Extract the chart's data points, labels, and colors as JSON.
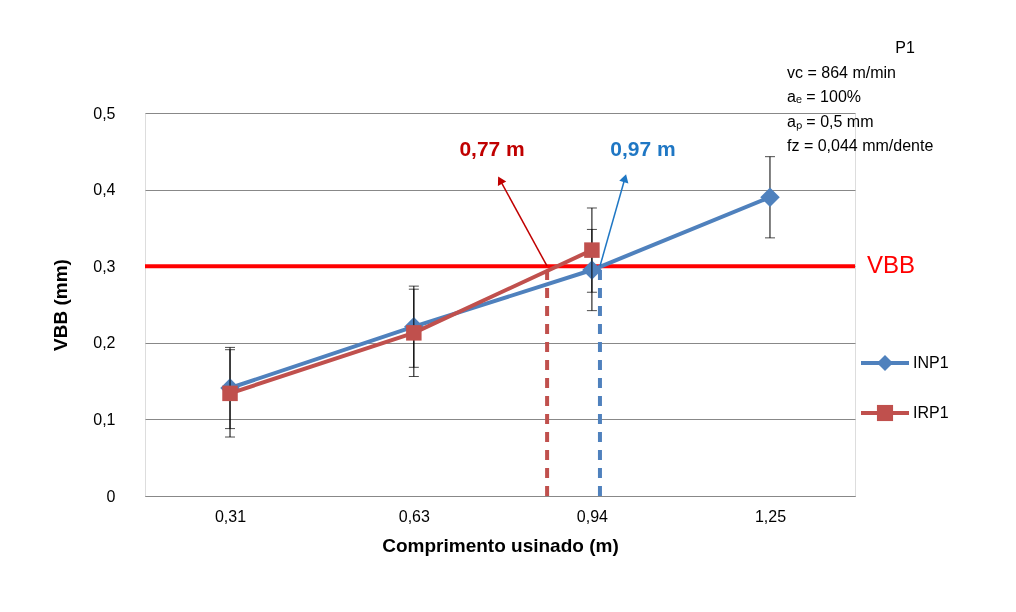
{
  "chart_data": {
    "type": "line",
    "xlabel": "Comprimento usinado (m)",
    "ylabel": "VBB (mm)",
    "x": [
      0.31,
      0.63,
      0.94,
      1.25
    ],
    "xlim": [
      0.162,
      1.398
    ],
    "xticks": [
      {
        "value": 0.31,
        "label": "0,31"
      },
      {
        "value": 0.63,
        "label": "0,63"
      },
      {
        "value": 0.94,
        "label": "0,94"
      },
      {
        "value": 1.25,
        "label": "1,25"
      }
    ],
    "ylim": [
      0,
      0.5
    ],
    "yticks": [
      0,
      {
        "value": 0.1,
        "label": "0,1"
      },
      {
        "value": 0.2,
        "label": "0,2"
      },
      {
        "value": 0.3,
        "label": "0,3"
      },
      {
        "value": 0.4,
        "label": "0,4"
      },
      {
        "value": 0.5,
        "label": "0,5"
      }
    ],
    "grid": "y",
    "legend": "right",
    "line_style": "solid",
    "series": [
      {
        "name": "INP1",
        "color": "#4f81bd",
        "marker": "diamond",
        "values": [
          0.141,
          0.221,
          0.295,
          0.39
        ],
        "errors": [
          0.053,
          0.053,
          0.053,
          0.053
        ]
      },
      {
        "name": "IRP1",
        "color": "#c0504d",
        "marker": "square",
        "values": [
          0.134,
          0.213,
          0.321,
          null
        ],
        "errors": [
          0.057,
          0.057,
          0.055,
          null
        ]
      }
    ],
    "ref_lines": [
      {
        "axis": "y",
        "value": 0.3,
        "label": "VBB",
        "color": "#ff0000",
        "line_style": "solid"
      },
      {
        "axis": "x",
        "value": 0.862,
        "color": "#c0504d",
        "line_style": "dashed"
      },
      {
        "axis": "x",
        "value": 0.954,
        "color": "#4f81bd",
        "line_style": "dashed"
      }
    ],
    "annotations": [
      {
        "text": "0,77 m",
        "x": 0.862,
        "y": 0.3
      },
      {
        "text": "0,97 m",
        "x": 0.954,
        "y": 0.3
      },
      "P1",
      "vc = 864 m/min",
      "aₑ = 100%",
      "aₚ = 0,5 mm",
      "fz = 0,044 mm/dente"
    ]
  }
}
